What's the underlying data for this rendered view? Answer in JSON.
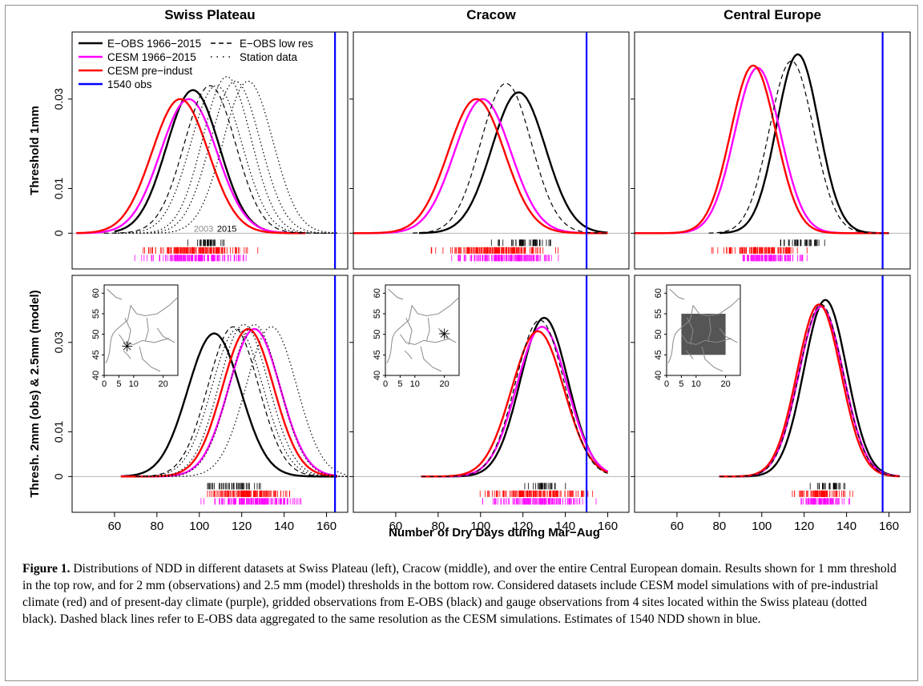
{
  "figure": {
    "col_titles": [
      "Swiss Plateau",
      "Cracow",
      "Central Europe"
    ],
    "row_labels": [
      "Threshold 1mm",
      "Thresh. 2mm (obs) & 2.5mm (model)"
    ],
    "xlabel": "Number of Dry Days during Mar−Aug",
    "caption_label": "Figure 1.",
    "caption_text": " Distributions of NDD in different datasets at Swiss Plateau (left), Cracow (middle), and over the entire Central European domain. Results shown for 1 mm threshold in the top row, and for 2 mm (observations) and 2.5 mm (model) thresholds in the bottom row. Considered datasets include CESM model simulations with of pre-industrial climate (red) and of present-day climate (purple), gridded observations from E-OBS (black) and gauge observations from 4 sites located within the Swiss plateau (dotted black). Dashed black lines refer to E-OBS data aggregated to the same resolution as the CESM simulations. Estimates of 1540 NDD shown in blue.",
    "legend": [
      {
        "label": "E−OBS 1966−2015",
        "color": "#000000",
        "style": "solid"
      },
      {
        "label": "CESM 1966−2015",
        "color": "#ff00ff",
        "style": "solid"
      },
      {
        "label": "CESM pre−indust",
        "color": "#ff0000",
        "style": "solid"
      },
      {
        "label": "1540 obs",
        "color": "#0000ff",
        "style": "solid"
      },
      {
        "label": "E−OBS low res",
        "color": "#000000",
        "style": "dashed"
      },
      {
        "label": "Station data",
        "color": "#000000",
        "style": "dotted"
      }
    ],
    "year_annotations": [
      "2003",
      "2015"
    ],
    "map_axis_x_ticks": [
      0,
      5,
      10,
      20
    ],
    "map_axis_y_ticks": [
      40,
      45,
      50,
      55,
      60
    ]
  },
  "chart_data": [
    {
      "type": "line",
      "panel": "Swiss Plateau / Threshold 1mm",
      "xlim": [
        40,
        170
      ],
      "ylim": [
        -0.008,
        0.045
      ],
      "x_ticks": [
        60,
        80,
        100,
        120,
        140,
        160
      ],
      "y_ticks": [
        0,
        0.01,
        0.03
      ],
      "series": [
        {
          "name": "E−OBS 1966−2015",
          "color": "#000000",
          "style": "solid",
          "peak_x": 97,
          "peak_y": 0.032,
          "range": [
            60,
            150
          ]
        },
        {
          "name": "CESM 1966−2015",
          "color": "#ff00ff",
          "style": "solid",
          "peak_x": 95,
          "peak_y": 0.03,
          "range": [
            42,
            150
          ]
        },
        {
          "name": "CESM pre−indust",
          "color": "#ff0000",
          "style": "solid",
          "peak_x": 91,
          "peak_y": 0.03,
          "range": [
            42,
            150
          ]
        },
        {
          "name": "E−OBS low res",
          "color": "#000000",
          "style": "dashed",
          "peak_x": 105,
          "peak_y": 0.033,
          "range": [
            55,
            160
          ]
        },
        {
          "name": "Station data",
          "color": "#000000",
          "style": "dotted",
          "peak_x": 108,
          "peak_y": 0.033,
          "range": [
            60,
            165
          ]
        },
        {
          "name": "Station data",
          "color": "#000000",
          "style": "dotted",
          "peak_x": 113,
          "peak_y": 0.035,
          "range": [
            60,
            165
          ]
        },
        {
          "name": "Station data",
          "color": "#000000",
          "style": "dotted",
          "peak_x": 117,
          "peak_y": 0.034,
          "range": [
            60,
            165
          ]
        },
        {
          "name": "Station data",
          "color": "#000000",
          "style": "dotted",
          "peak_x": 123,
          "peak_y": 0.034,
          "range": [
            60,
            165
          ]
        }
      ],
      "obs_1540": 164,
      "rugs": [
        {
          "color": "#000000",
          "range": [
            89,
            118
          ]
        },
        {
          "color": "#ff0000",
          "range": [
            66,
            131
          ]
        },
        {
          "color": "#ff00ff",
          "range": [
            68,
            128
          ]
        }
      ]
    },
    {
      "type": "line",
      "panel": "Cracow / Threshold 1mm",
      "xlim": [
        40,
        170
      ],
      "ylim": [
        -0.008,
        0.045
      ],
      "x_ticks": [
        60,
        80,
        100,
        120,
        140,
        160
      ],
      "series": [
        {
          "name": "E−OBS 1966−2015",
          "color": "#000000",
          "style": "solid",
          "peak_x": 118,
          "peak_y": 0.0315,
          "range": [
            71,
            160
          ]
        },
        {
          "name": "CESM 1966−2015",
          "color": "#ff00ff",
          "style": "solid",
          "peak_x": 101,
          "peak_y": 0.03,
          "range": [
            40,
            160
          ]
        },
        {
          "name": "CESM pre−indust",
          "color": "#ff0000",
          "style": "solid",
          "peak_x": 98,
          "peak_y": 0.03,
          "range": [
            40,
            160
          ]
        },
        {
          "name": "E−OBS low res",
          "color": "#000000",
          "style": "dashed",
          "peak_x": 112,
          "peak_y": 0.0335,
          "range": [
            68,
            160
          ]
        }
      ],
      "obs_1540": 150,
      "rugs": [
        {
          "color": "#000000",
          "range": [
            100,
            143
          ]
        },
        {
          "color": "#ff0000",
          "range": [
            72,
            143
          ]
        },
        {
          "color": "#ff00ff",
          "range": [
            80,
            145
          ]
        }
      ]
    },
    {
      "type": "line",
      "panel": "Central Europe / Threshold 1mm",
      "xlim": [
        40,
        170
      ],
      "ylim": [
        -0.008,
        0.045
      ],
      "x_ticks": [
        60,
        80,
        100,
        120,
        140,
        160
      ],
      "series": [
        {
          "name": "E−OBS 1966−2015",
          "color": "#000000",
          "style": "solid",
          "peak_x": 117,
          "peak_y": 0.04,
          "range": [
            80,
            160
          ]
        },
        {
          "name": "CESM 1966−2015",
          "color": "#ff00ff",
          "style": "solid",
          "peak_x": 98,
          "peak_y": 0.037,
          "range": [
            40,
            160
          ]
        },
        {
          "name": "CESM pre−indust",
          "color": "#ff0000",
          "style": "solid",
          "peak_x": 96,
          "peak_y": 0.0375,
          "range": [
            40,
            160
          ]
        },
        {
          "name": "E−OBS low res",
          "color": "#000000",
          "style": "dashed",
          "peak_x": 114,
          "peak_y": 0.0385,
          "range": [
            75,
            160
          ]
        }
      ],
      "obs_1540": 157,
      "rugs": [
        {
          "color": "#000000",
          "range": [
            103,
            134
          ]
        },
        {
          "color": "#ff0000",
          "range": [
            72,
            125
          ]
        },
        {
          "color": "#ff00ff",
          "range": [
            80,
            125
          ]
        }
      ]
    },
    {
      "type": "line",
      "panel": "Swiss Plateau / Thresh. 2mm (obs) & 2.5mm (model)",
      "xlim": [
        40,
        170
      ],
      "ylim": [
        -0.008,
        0.045
      ],
      "x_ticks": [
        60,
        80,
        100,
        120,
        140,
        160
      ],
      "y_ticks": [
        0,
        0.01,
        0.03
      ],
      "series": [
        {
          "name": "E−OBS 1966−2015",
          "color": "#000000",
          "style": "solid",
          "peak_x": 107,
          "peak_y": 0.032,
          "range": [
            63,
            165
          ]
        },
        {
          "name": "CESM 1966−2015",
          "color": "#ff00ff",
          "style": "solid",
          "peak_x": 126,
          "peak_y": 0.033,
          "range": [
            63,
            165
          ]
        },
        {
          "name": "CESM pre−indust",
          "color": "#ff0000",
          "style": "solid",
          "peak_x": 123,
          "peak_y": 0.033,
          "range": [
            63,
            165
          ]
        },
        {
          "name": "E−OBS low res",
          "color": "#000000",
          "style": "dashed",
          "peak_x": 116,
          "peak_y": 0.0335,
          "range": [
            70,
            165
          ]
        },
        {
          "name": "Station data",
          "color": "#000000",
          "style": "dotted",
          "peak_x": 118,
          "peak_y": 0.033,
          "range": [
            70,
            170
          ]
        },
        {
          "name": "Station data",
          "color": "#000000",
          "style": "dotted",
          "peak_x": 121,
          "peak_y": 0.034,
          "range": [
            70,
            170
          ]
        },
        {
          "name": "Station data",
          "color": "#000000",
          "style": "dotted",
          "peak_x": 126,
          "peak_y": 0.034,
          "range": [
            70,
            170
          ]
        },
        {
          "name": "Station data",
          "color": "#000000",
          "style": "dotted",
          "peak_x": 134,
          "peak_y": 0.0335,
          "range": [
            70,
            170
          ]
        }
      ],
      "obs_1540": 164,
      "rugs": [
        {
          "color": "#000000",
          "range": [
            95,
            134
          ]
        },
        {
          "color": "#ff0000",
          "range": [
            94,
            152
          ]
        },
        {
          "color": "#ff00ff",
          "range": [
            96,
            156
          ]
        }
      ]
    },
    {
      "type": "line",
      "panel": "Cracow / Thresh. 2mm (obs) & 2.5mm (model)",
      "xlim": [
        40,
        170
      ],
      "ylim": [
        -0.008,
        0.045
      ],
      "x_ticks": [
        60,
        80,
        100,
        120,
        140,
        160
      ],
      "series": [
        {
          "name": "E−OBS 1966−2015",
          "color": "#000000",
          "style": "solid",
          "peak_x": 130,
          "peak_y": 0.0355,
          "range": [
            72,
            160
          ]
        },
        {
          "name": "CESM 1966−2015",
          "color": "#ff00ff",
          "style": "solid",
          "peak_x": 129,
          "peak_y": 0.0335,
          "range": [
            72,
            160
          ]
        },
        {
          "name": "CESM pre−indust",
          "color": "#ff0000",
          "style": "solid",
          "peak_x": 127,
          "peak_y": 0.0325,
          "range": [
            72,
            160
          ]
        },
        {
          "name": "E−OBS low res",
          "color": "#000000",
          "style": "dashed",
          "peak_x": 128,
          "peak_y": 0.035,
          "range": [
            72,
            160
          ]
        }
      ],
      "obs_1540": 150,
      "rugs": [
        {
          "color": "#000000",
          "range": [
            117,
            142
          ]
        },
        {
          "color": "#ff0000",
          "range": [
            95,
            159
          ]
        },
        {
          "color": "#ff00ff",
          "range": [
            96,
            160
          ]
        }
      ]
    },
    {
      "type": "line",
      "panel": "Central Europe / Thresh. 2mm (obs) & 2.5mm (model)",
      "xlim": [
        40,
        170
      ],
      "ylim": [
        -0.008,
        0.045
      ],
      "x_ticks": [
        60,
        80,
        100,
        120,
        140,
        160
      ],
      "series": [
        {
          "name": "E−OBS 1966−2015",
          "color": "#000000",
          "style": "solid",
          "peak_x": 130,
          "peak_y": 0.0395,
          "range": [
            80,
            165
          ]
        },
        {
          "name": "CESM 1966−2015",
          "color": "#ff00ff",
          "style": "solid",
          "peak_x": 128,
          "peak_y": 0.038,
          "range": [
            80,
            165
          ]
        },
        {
          "name": "CESM pre−indust",
          "color": "#ff0000",
          "style": "solid",
          "peak_x": 127,
          "peak_y": 0.0385,
          "range": [
            80,
            165
          ]
        },
        {
          "name": "E−OBS low res",
          "color": "#000000",
          "style": "dashed",
          "peak_x": 128,
          "peak_y": 0.0385,
          "range": [
            80,
            165
          ]
        }
      ],
      "obs_1540": 157,
      "rugs": [
        {
          "color": "#000000",
          "range": [
            119,
            145
          ]
        },
        {
          "color": "#ff0000",
          "range": [
            109,
            146
          ]
        },
        {
          "color": "#ff00ff",
          "range": [
            112,
            146
          ]
        }
      ]
    }
  ]
}
